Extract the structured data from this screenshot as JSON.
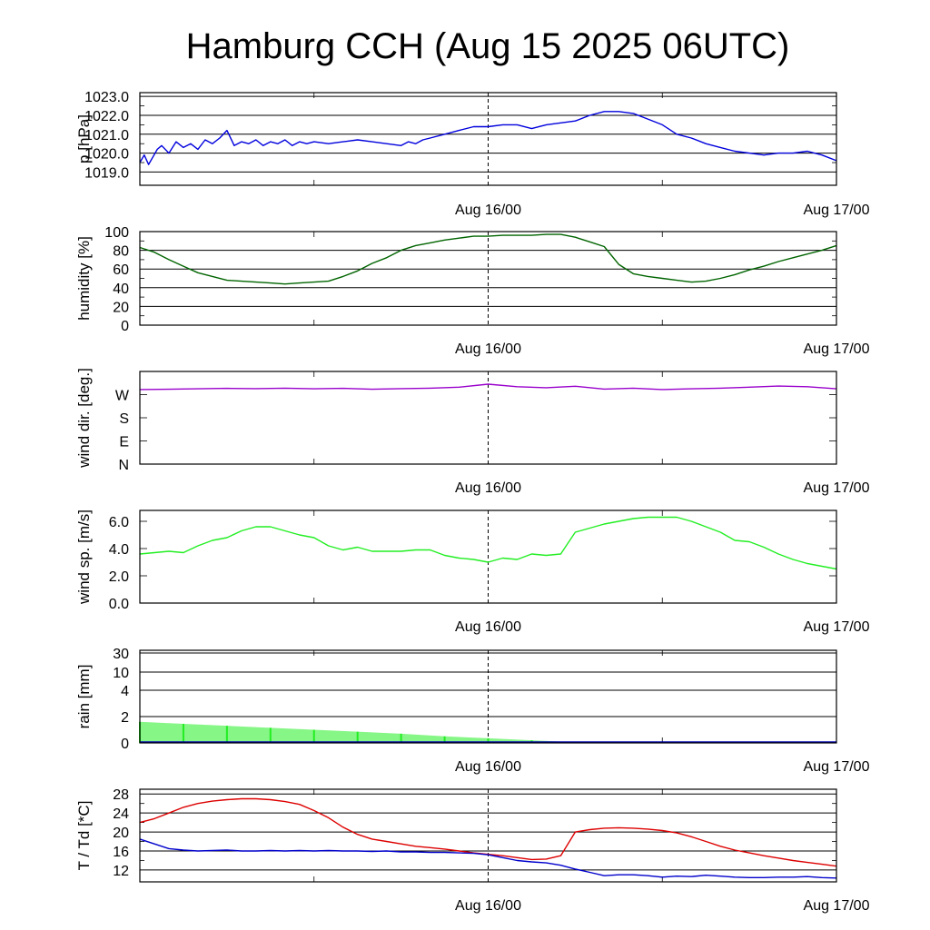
{
  "title": "Hamburg CCH (Aug 15 2025 06UTC)",
  "chart_data": [
    {
      "type": "line",
      "id": "pressure",
      "ylabel": "p [hPa]",
      "ylim": [
        1018.3,
        1023.2
      ],
      "yticks": [
        1019.0,
        1020.0,
        1021.0,
        1022.0,
        1023.0
      ],
      "yticklabels": [
        "1019.0",
        "1020.0",
        "1021.0",
        "1022.0",
        "1023.0"
      ],
      "grid": true,
      "x_ticks": [
        "Aug 16/00",
        "Aug 17/00"
      ],
      "series": [
        {
          "color": "#0000dd",
          "x_hours": [
            0,
            0.3,
            0.6,
            0.9,
            1.2,
            1.5,
            2,
            2.5,
            3,
            3.5,
            4,
            4.5,
            5,
            5.5,
            6,
            6.5,
            7,
            7.5,
            8,
            8.5,
            9,
            9.5,
            10,
            10.5,
            11,
            11.5,
            12,
            13,
            14,
            15,
            16,
            17,
            18,
            18.5,
            19,
            19.5,
            20,
            21,
            22,
            23,
            24,
            25,
            26,
            27,
            28,
            29,
            30,
            31,
            32,
            33,
            34,
            35,
            36,
            37,
            38,
            39,
            40,
            41,
            42,
            43,
            44,
            45,
            46,
            47,
            48
          ],
          "values": [
            1019.5,
            1019.9,
            1019.4,
            1019.8,
            1020.2,
            1020.4,
            1020.0,
            1020.6,
            1020.3,
            1020.5,
            1020.2,
            1020.7,
            1020.5,
            1020.8,
            1021.2,
            1020.4,
            1020.6,
            1020.5,
            1020.7,
            1020.4,
            1020.6,
            1020.5,
            1020.7,
            1020.4,
            1020.6,
            1020.5,
            1020.6,
            1020.5,
            1020.6,
            1020.7,
            1020.6,
            1020.5,
            1020.4,
            1020.6,
            1020.5,
            1020.7,
            1020.8,
            1021.0,
            1021.2,
            1021.4,
            1021.4,
            1021.5,
            1021.5,
            1021.3,
            1021.5,
            1021.6,
            1021.7,
            1022.0,
            1022.2,
            1022.2,
            1022.1,
            1021.8,
            1021.5,
            1021.0,
            1020.8,
            1020.5,
            1020.3,
            1020.1,
            1020.0,
            1019.9,
            1020.0,
            1020.0,
            1020.1,
            1019.9,
            1019.6
          ]
        }
      ]
    },
    {
      "type": "line",
      "id": "humidity",
      "ylabel": "humidity [%]",
      "ylim": [
        0,
        100
      ],
      "yticks": [
        0,
        20,
        40,
        60,
        80,
        100
      ],
      "yticklabels": [
        "0",
        "20",
        "40",
        "60",
        "80",
        "100"
      ],
      "grid": true,
      "x_ticks": [
        "Aug 16/00",
        "Aug 17/00"
      ],
      "series": [
        {
          "color": "#006400",
          "x_hours": [
            0,
            1,
            2,
            3,
            4,
            5,
            6,
            7,
            8,
            9,
            10,
            11,
            12,
            13,
            14,
            15,
            16,
            17,
            18,
            19,
            20,
            21,
            22,
            23,
            24,
            25,
            26,
            27,
            28,
            29,
            30,
            31,
            32,
            33,
            34,
            35,
            36,
            37,
            38,
            39,
            40,
            41,
            42,
            43,
            44,
            45,
            46,
            47,
            48
          ],
          "values": [
            83,
            78,
            70,
            63,
            56,
            52,
            48,
            47,
            46,
            45,
            44,
            45,
            46,
            47,
            52,
            58,
            66,
            72,
            80,
            85,
            88,
            91,
            93,
            95,
            95,
            96,
            96,
            96,
            97,
            97,
            94,
            89,
            84,
            65,
            55,
            52,
            50,
            48,
            46,
            47,
            50,
            54,
            59,
            63,
            68,
            72,
            76,
            80,
            85
          ]
        }
      ]
    },
    {
      "type": "line",
      "id": "winddir",
      "ylabel": "wind dir. [deg.]",
      "ylim": [
        0,
        400
      ],
      "yticks": [
        0,
        100,
        200,
        300
      ],
      "yticklabels": [
        "N",
        "E",
        "S",
        "W"
      ],
      "grid": false,
      "x_ticks": [
        "Aug 16/00",
        "Aug 17/00"
      ],
      "series": [
        {
          "color": "#9900cc",
          "x_hours": [
            0,
            2,
            4,
            6,
            8,
            10,
            12,
            14,
            16,
            18,
            20,
            22,
            24,
            26,
            28,
            30,
            32,
            34,
            36,
            38,
            40,
            42,
            44,
            46,
            48
          ],
          "values": [
            322,
            323,
            325,
            327,
            326,
            328,
            325,
            327,
            323,
            326,
            328,
            332,
            345,
            334,
            330,
            336,
            324,
            328,
            322,
            325,
            328,
            332,
            337,
            334,
            325
          ]
        }
      ]
    },
    {
      "type": "line",
      "id": "windspeed",
      "ylabel": "wind sp. [m/s]",
      "ylim": [
        0,
        6.8
      ],
      "yticks": [
        0.0,
        2.0,
        4.0,
        6.0
      ],
      "yticklabels": [
        "0.0",
        "2.0",
        "4.0",
        "6.0"
      ],
      "grid": false,
      "x_ticks": [
        "Aug 16/00",
        "Aug 17/00"
      ],
      "series": [
        {
          "color": "#22ee22",
          "x_hours": [
            0,
            1,
            2,
            3,
            4,
            5,
            6,
            7,
            8,
            9,
            10,
            11,
            12,
            13,
            14,
            15,
            16,
            17,
            18,
            19,
            20,
            21,
            22,
            23,
            24,
            25,
            26,
            27,
            28,
            29,
            30,
            31,
            32,
            33,
            34,
            35,
            36,
            37,
            38,
            39,
            40,
            41,
            42,
            43,
            44,
            45,
            46,
            47,
            48
          ],
          "values": [
            3.6,
            3.7,
            3.8,
            3.7,
            4.2,
            4.6,
            4.8,
            5.3,
            5.6,
            5.6,
            5.3,
            5.0,
            4.8,
            4.2,
            3.9,
            4.1,
            3.8,
            3.8,
            3.8,
            3.9,
            3.9,
            3.5,
            3.3,
            3.2,
            3.0,
            3.3,
            3.2,
            3.6,
            3.5,
            3.6,
            5.2,
            5.5,
            5.8,
            6.0,
            6.2,
            6.3,
            6.3,
            6.3,
            6.0,
            5.6,
            5.2,
            4.6,
            4.5,
            4.1,
            3.6,
            3.2,
            2.9,
            2.7,
            2.5
          ]
        }
      ]
    },
    {
      "type": "area",
      "id": "rain",
      "ylabel": "rain [mm]",
      "yticks": [
        0,
        2,
        4,
        10,
        30
      ],
      "yticklabels": [
        "0",
        "2",
        "4",
        "10",
        "30"
      ],
      "grid": true,
      "x_ticks": [
        "Aug 16/00",
        "Aug 17/00"
      ],
      "series": [
        {
          "color": "#22ee22",
          "x_hours": [
            0,
            3,
            6,
            9,
            12,
            15,
            18,
            21,
            24,
            27,
            30,
            33,
            48
          ],
          "values": [
            1.6,
            1.45,
            1.3,
            1.15,
            1.0,
            0.85,
            0.7,
            0.5,
            0.35,
            0.2,
            0.05,
            0,
            0
          ]
        }
      ]
    },
    {
      "type": "line",
      "id": "temperature",
      "ylabel": "T / Td [*C]",
      "ylim": [
        9.5,
        29
      ],
      "yticks": [
        12,
        16,
        20,
        24,
        28
      ],
      "yticklabels": [
        "12",
        "16",
        "20",
        "24",
        "28"
      ],
      "grid": true,
      "x_ticks": [
        "Aug 16/00",
        "Aug 17/00"
      ],
      "series": [
        {
          "color": "#dd0000",
          "x_hours": [
            0,
            1,
            2,
            3,
            4,
            5,
            6,
            7,
            8,
            9,
            10,
            11,
            12,
            13,
            14,
            15,
            16,
            17,
            18,
            19,
            20,
            21,
            22,
            23,
            24,
            25,
            26,
            27,
            28,
            29,
            30,
            31,
            32,
            33,
            34,
            35,
            36,
            37,
            38,
            39,
            40,
            41,
            42,
            43,
            44,
            45,
            46,
            47,
            48
          ],
          "values": [
            22.0,
            22.8,
            24.0,
            25.2,
            26.0,
            26.5,
            26.8,
            27.0,
            27.0,
            26.8,
            26.4,
            25.8,
            24.5,
            23.0,
            21.0,
            19.5,
            18.5,
            18.0,
            17.5,
            17.0,
            16.7,
            16.4,
            16.0,
            15.6,
            15.3,
            15.0,
            14.6,
            14.2,
            14.3,
            15.0,
            20.0,
            20.5,
            20.8,
            20.9,
            20.8,
            20.6,
            20.3,
            19.8,
            19.0,
            18.0,
            17.0,
            16.2,
            15.6,
            15.0,
            14.5,
            14.0,
            13.6,
            13.2,
            12.8
          ]
        },
        {
          "color": "#0000cc",
          "x_hours": [
            0,
            1,
            2,
            3,
            4,
            5,
            6,
            7,
            8,
            9,
            10,
            11,
            12,
            13,
            14,
            15,
            16,
            17,
            18,
            19,
            20,
            21,
            22,
            23,
            24,
            25,
            26,
            27,
            28,
            29,
            30,
            31,
            32,
            33,
            34,
            35,
            36,
            37,
            38,
            39,
            40,
            41,
            42,
            43,
            44,
            45,
            46,
            47,
            48
          ],
          "values": [
            18.5,
            17.5,
            16.5,
            16.2,
            16.0,
            16.1,
            16.2,
            16.0,
            16.0,
            16.1,
            16.0,
            16.1,
            16.0,
            16.1,
            16.0,
            16.0,
            15.9,
            16.0,
            15.8,
            15.8,
            15.7,
            15.7,
            15.6,
            15.5,
            15.2,
            14.6,
            14.0,
            13.7,
            13.5,
            13.0,
            12.2,
            11.5,
            10.8,
            11.0,
            11.0,
            10.8,
            10.5,
            10.7,
            10.6,
            10.9,
            10.7,
            10.5,
            10.4,
            10.4,
            10.5,
            10.5,
            10.6,
            10.4,
            10.3
          ]
        }
      ]
    }
  ]
}
